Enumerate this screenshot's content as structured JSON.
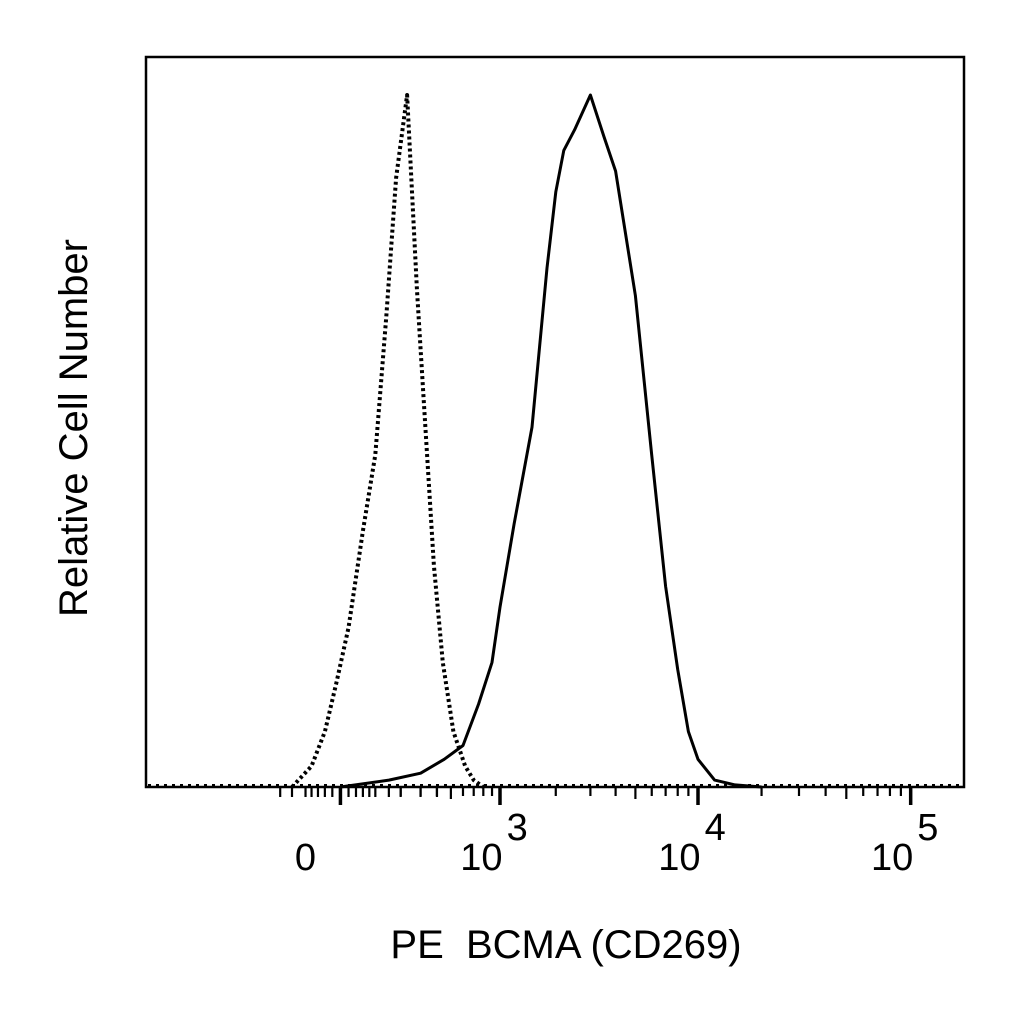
{
  "chart_data": {
    "type": "area",
    "xlabel": "PE  BCMA (CD269)",
    "ylabel": "Relative Cell Number",
    "x_scale": "biexponential",
    "xlim": [
      -300,
      200000
    ],
    "ylim": [
      0,
      1
    ],
    "grid": false,
    "legend": "none",
    "x_ticks": [
      {
        "value": 0,
        "base": "0",
        "exp": ""
      },
      {
        "value": 1000,
        "base": "10",
        "exp": "3"
      },
      {
        "value": 10000,
        "base": "10",
        "exp": "4"
      },
      {
        "value": 100000,
        "base": "10",
        "exp": "5"
      }
    ],
    "series": [
      {
        "style": "dotted",
        "x": [
          -150,
          -80,
          -40,
          -10,
          20,
          60,
          100,
          140,
          180,
          230,
          280,
          320,
          380,
          440,
          520,
          620,
          700,
          800
        ],
        "y": [
          0.0,
          0.03,
          0.08,
          0.15,
          0.23,
          0.37,
          0.48,
          0.68,
          0.88,
          1.0,
          0.72,
          0.55,
          0.32,
          0.18,
          0.08,
          0.03,
          0.01,
          0.0
        ]
      },
      {
        "style": "solid",
        "x": [
          0,
          150,
          300,
          450,
          600,
          750,
          900,
          1000,
          1200,
          1500,
          1800,
          2000,
          2200,
          2500,
          3000,
          3500,
          4000,
          5000,
          6000,
          7000,
          8000,
          9000,
          10000,
          12000,
          15000,
          20000
        ],
        "y": [
          0.0,
          0.01,
          0.02,
          0.04,
          0.06,
          0.12,
          0.18,
          0.26,
          0.38,
          0.52,
          0.75,
          0.86,
          0.92,
          0.95,
          1.0,
          0.94,
          0.89,
          0.71,
          0.48,
          0.29,
          0.17,
          0.08,
          0.04,
          0.01,
          0.003,
          0.0
        ]
      }
    ]
  }
}
